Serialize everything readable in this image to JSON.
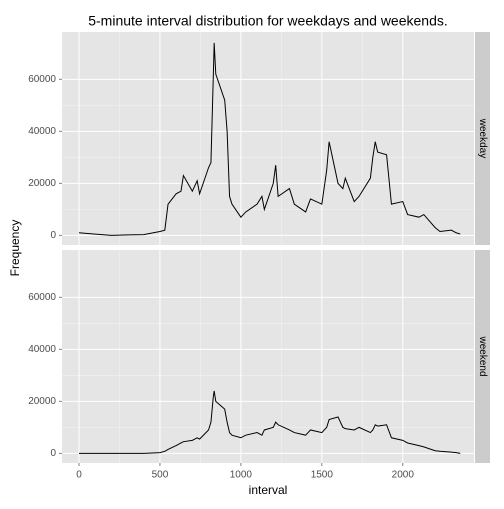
{
  "chart_data": {
    "type": "line",
    "title": "5-minute interval distribution for weekdays and weekends.",
    "xlabel": "interval",
    "ylabel": "Frequency",
    "x": [
      0,
      100,
      200,
      300,
      400,
      500,
      530,
      550,
      600,
      630,
      645,
      700,
      730,
      745,
      800,
      815,
      830,
      835,
      845,
      900,
      915,
      930,
      945,
      1000,
      1030,
      1100,
      1130,
      1145,
      1200,
      1215,
      1230,
      1300,
      1330,
      1400,
      1430,
      1500,
      1530,
      1545,
      1600,
      1630,
      1645,
      1700,
      1730,
      1800,
      1815,
      1830,
      1845,
      1900,
      1930,
      2000,
      2030,
      2100,
      2130,
      2200,
      2230,
      2300,
      2330,
      2355
    ],
    "series": [
      {
        "name": "weekday",
        "color": "#000000",
        "values": [
          1000,
          500,
          0,
          200,
          300,
          1500,
          2000,
          12000,
          16000,
          17000,
          23000,
          17000,
          21000,
          16000,
          26000,
          28000,
          62000,
          74000,
          62000,
          52000,
          40000,
          15000,
          12000,
          7000,
          9000,
          12000,
          15000,
          10000,
          20000,
          27000,
          15000,
          18000,
          12000,
          9000,
          14000,
          12000,
          25000,
          36000,
          20000,
          18000,
          22000,
          13000,
          15000,
          22000,
          30000,
          36000,
          32000,
          31000,
          12000,
          13000,
          8000,
          7000,
          8000,
          3000,
          1500,
          2000,
          1000,
          500
        ]
      },
      {
        "name": "weekend",
        "color": "#000000",
        "values": [
          0,
          0,
          0,
          0,
          0,
          300,
          800,
          1500,
          3000,
          4000,
          4500,
          5000,
          6000,
          5500,
          9000,
          12000,
          22000,
          24000,
          20000,
          17000,
          12000,
          8000,
          7000,
          6000,
          7000,
          8000,
          7000,
          9000,
          10000,
          12000,
          11000,
          9000,
          8000,
          7000,
          9000,
          8000,
          10000,
          13000,
          14000,
          10000,
          9500,
          9000,
          10000,
          8000,
          9000,
          11000,
          10500,
          11000,
          6000,
          5000,
          4000,
          3000,
          2500,
          1000,
          800,
          500,
          300,
          0
        ]
      }
    ],
    "facets": true,
    "xlim": [
      -105,
      2440
    ],
    "ylim": [
      -3700,
      78200
    ],
    "xticks": [
      0,
      500,
      1000,
      1500,
      2000
    ],
    "yticks": [
      0,
      20000,
      40000,
      60000
    ],
    "grid": true
  }
}
